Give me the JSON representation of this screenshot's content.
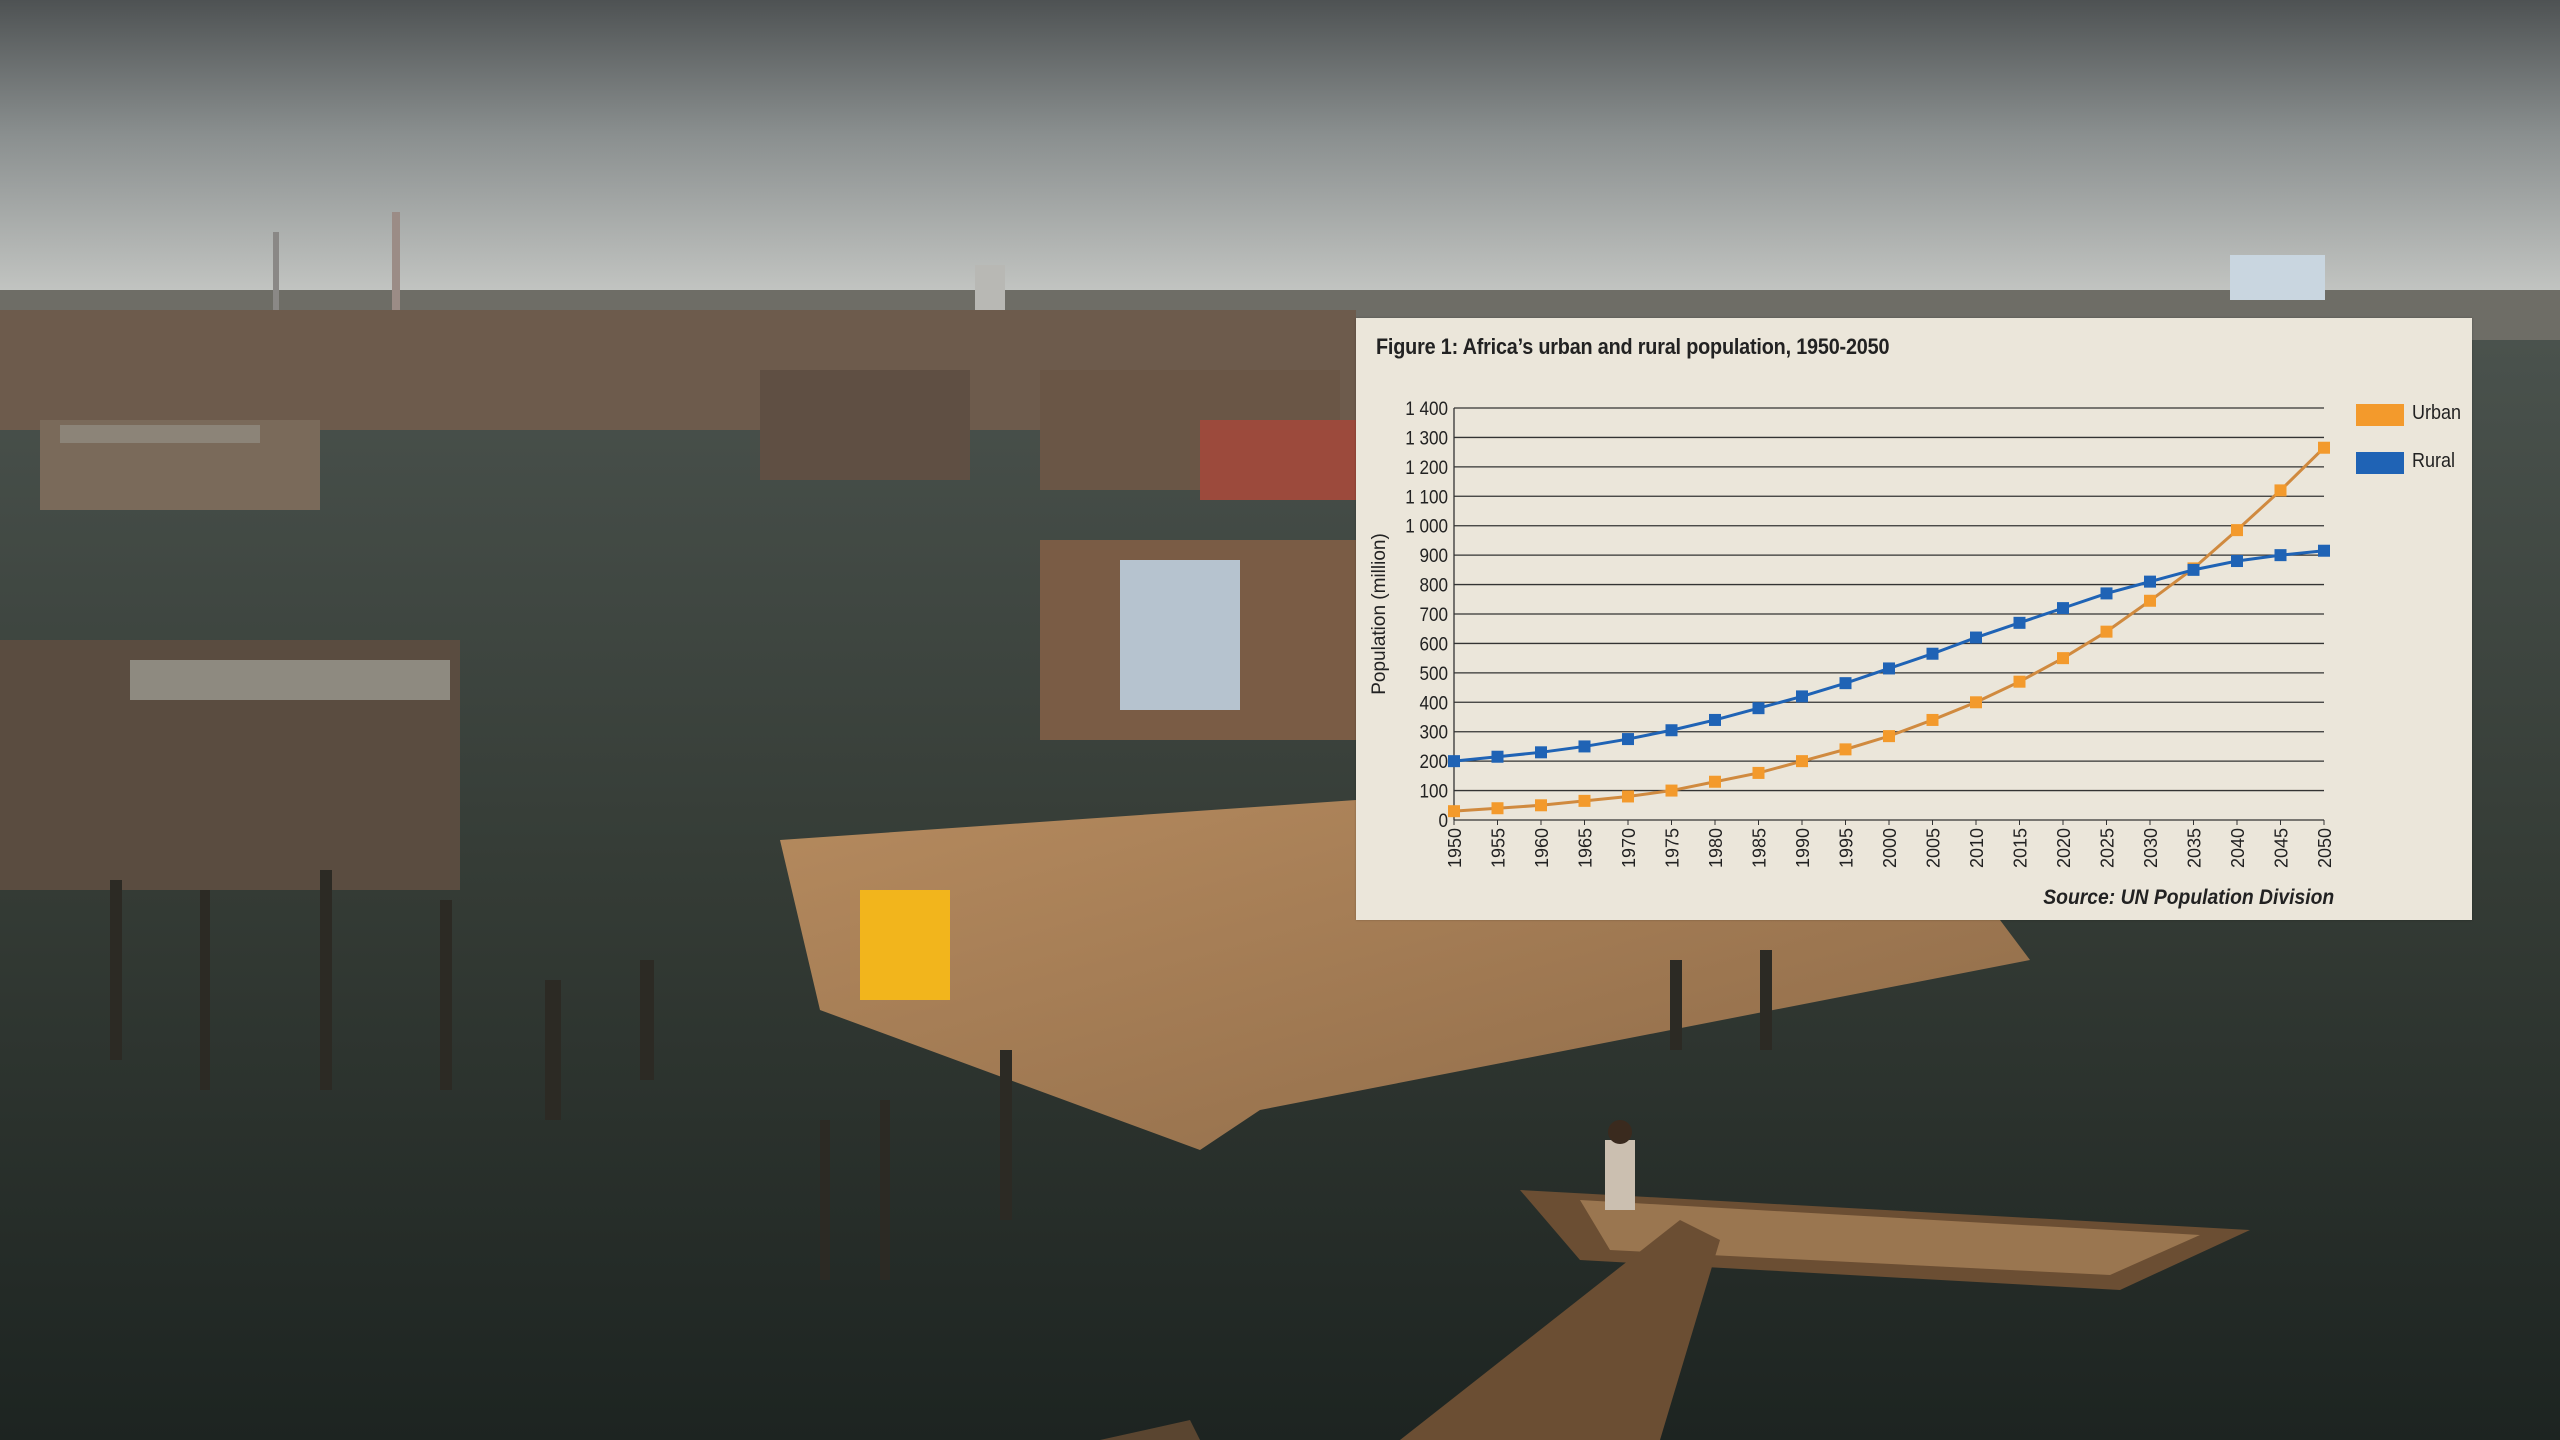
{
  "chart_data": {
    "type": "line",
    "title": "Figure 1: Africa’s urban and rural population, 1950-2050",
    "xlabel": "",
    "ylabel": "Population (million)",
    "source": "Source: UN Population Division",
    "ylim": [
      0,
      1400
    ],
    "xlim": [
      1950,
      2050
    ],
    "yticks": [
      0,
      100,
      200,
      300,
      400,
      500,
      600,
      700,
      800,
      900,
      1000,
      1100,
      1200,
      1300,
      1400
    ],
    "ytick_labels": [
      "0",
      "100",
      "200",
      "300",
      "400",
      "500",
      "600",
      "700",
      "800",
      "900",
      "1 000",
      "1 100",
      "1 200",
      "1 300",
      "1 400"
    ],
    "xticks": [
      1950,
      1955,
      1960,
      1965,
      1970,
      1975,
      1980,
      1985,
      1990,
      1995,
      2000,
      2005,
      2010,
      2015,
      2020,
      2025,
      2030,
      2035,
      2040,
      2045,
      2050
    ],
    "grid": true,
    "legend_position": "right",
    "x": [
      1950,
      1955,
      1960,
      1965,
      1970,
      1975,
      1980,
      1985,
      1990,
      1995,
      2000,
      2005,
      2010,
      2015,
      2020,
      2025,
      2030,
      2035,
      2040,
      2045,
      2050
    ],
    "series": [
      {
        "name": "Urban",
        "color": "#f39a2c",
        "line_color": "#d08a3f",
        "values": [
          30,
          40,
          50,
          65,
          80,
          100,
          130,
          160,
          200,
          240,
          285,
          340,
          400,
          470,
          550,
          640,
          745,
          855,
          985,
          1120,
          1265
        ]
      },
      {
        "name": "Rural",
        "color": "#1f63b5",
        "line_color": "#1f63b5",
        "values": [
          200,
          215,
          230,
          250,
          275,
          305,
          340,
          380,
          420,
          465,
          515,
          565,
          620,
          670,
          720,
          770,
          810,
          850,
          880,
          900,
          915
        ]
      }
    ]
  }
}
